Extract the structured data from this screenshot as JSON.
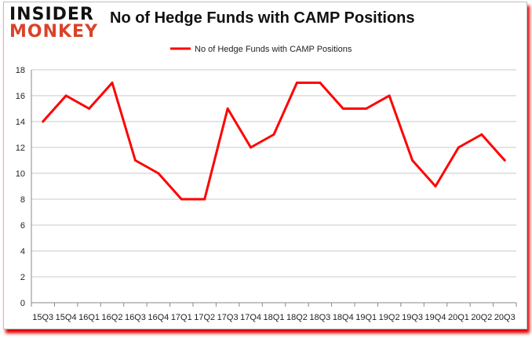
{
  "logo": {
    "line1": "INSIDER",
    "line2": "MONKEY"
  },
  "chart_data": {
    "type": "line",
    "title": "No of Hedge Funds with CAMP Positions",
    "categories": [
      "15Q3",
      "15Q4",
      "16Q1",
      "16Q2",
      "16Q3",
      "16Q4",
      "17Q1",
      "17Q2",
      "17Q3",
      "17Q4",
      "18Q1",
      "18Q2",
      "18Q3",
      "18Q4",
      "19Q1",
      "19Q2",
      "19Q3",
      "19Q4",
      "20Q1",
      "20Q2",
      "20Q3"
    ],
    "series": [
      {
        "name": "No of Hedge Funds with CAMP Positions",
        "color": "#ff0000",
        "values": [
          14,
          16,
          15,
          17,
          11,
          10,
          8,
          8,
          15,
          12,
          13,
          17,
          17,
          15,
          15,
          16,
          11,
          9,
          12,
          13,
          11
        ]
      }
    ],
    "ylim": [
      0,
      18
    ],
    "yticks": [
      0,
      2,
      4,
      6,
      8,
      10,
      12,
      14,
      16,
      18
    ],
    "grid": true,
    "legend": "top-center",
    "xlabel": "",
    "ylabel": ""
  }
}
